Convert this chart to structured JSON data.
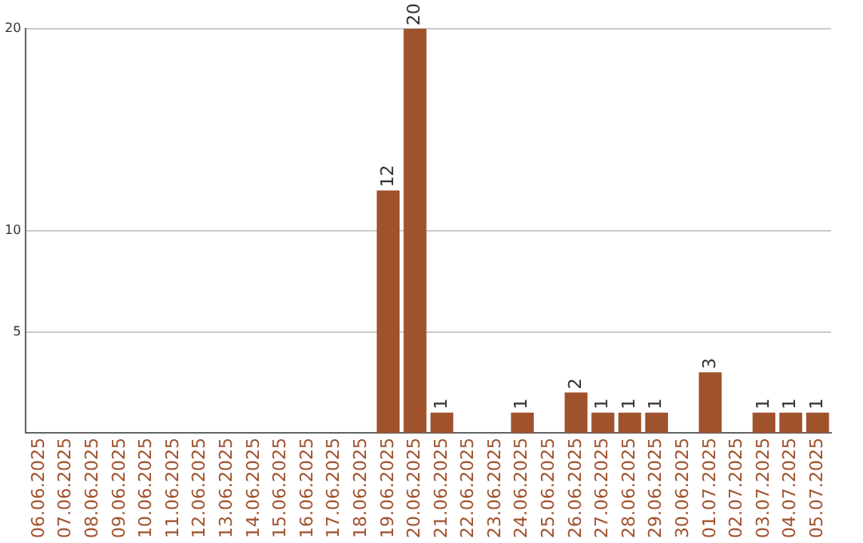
{
  "chart_data": {
    "type": "bar",
    "categories": [
      "06.06.2025",
      "07.06.2025",
      "08.06.2025",
      "09.06.2025",
      "10.06.2025",
      "11.06.2025",
      "12.06.2025",
      "13.06.2025",
      "14.06.2025",
      "15.06.2025",
      "16.06.2025",
      "17.06.2025",
      "18.06.2025",
      "19.06.2025",
      "20.06.2025",
      "21.06.2025",
      "22.06.2025",
      "23.06.2025",
      "24.06.2025",
      "25.06.2025",
      "26.06.2025",
      "27.06.2025",
      "28.06.2025",
      "29.06.2025",
      "30.06.2025",
      "01.07.2025",
      "02.07.2025",
      "03.07.2025",
      "04.07.2025",
      "05.07.2025"
    ],
    "values": [
      null,
      null,
      null,
      null,
      null,
      null,
      null,
      null,
      null,
      null,
      null,
      null,
      null,
      12,
      20,
      1,
      null,
      null,
      1,
      null,
      2,
      1,
      1,
      1,
      null,
      3,
      null,
      1,
      1,
      1
    ],
    "color": "#a0522d",
    "ylim": [
      0,
      20
    ],
    "yticks": [
      5,
      10,
      20
    ],
    "grid": "y",
    "data_labels": true,
    "legend": false
  }
}
